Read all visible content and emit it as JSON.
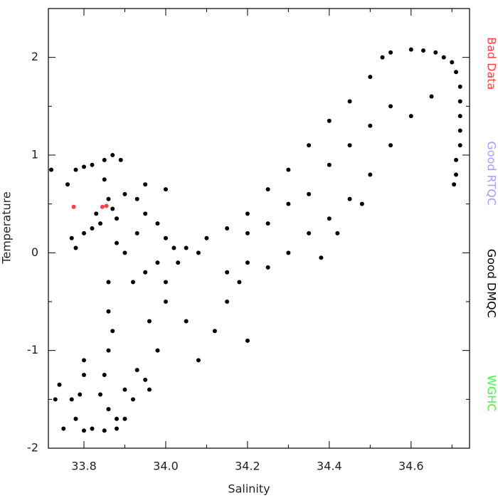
{
  "chart_data": {
    "type": "scatter",
    "xlabel": "Salinity",
    "ylabel": "Temperature",
    "xlim": [
      33.713,
      34.743
    ],
    "ylim": [
      -2,
      2.5
    ],
    "xticks": [
      33.8,
      {
        "value": 34,
        "label": "34.0"
      },
      34.2,
      34.4,
      34.6
    ],
    "xminorticks": [
      33.9,
      34.1,
      34.3,
      34.5,
      34.7
    ],
    "yticks": [
      -2,
      -1,
      0,
      1,
      2
    ],
    "yminorticks": [
      -1.5,
      -0.5,
      0.5,
      1.5
    ],
    "legend": "right",
    "series": [
      {
        "name": "Bad Data",
        "color": "#ff4040",
        "x": [
          33.775,
          33.845,
          33.855
        ],
        "y": [
          0.47,
          0.47,
          0.48
        ]
      },
      {
        "name": "Good RTQC",
        "color": "#a0a0ff",
        "x": [],
        "y": []
      },
      {
        "name": "Good DMQC",
        "color": "#000000",
        "x": [
          34.55,
          34.6,
          34.63,
          34.66,
          34.68,
          34.7,
          34.71,
          34.72,
          34.72,
          34.72,
          34.72,
          34.72,
          34.71,
          34.71,
          34.705,
          34.05,
          34.1,
          34.15,
          34.2,
          34.25,
          34.3,
          34.35,
          34.4,
          34.45,
          34.5,
          34.53,
          34.15,
          34.2,
          34.25,
          34.3,
          34.35,
          34.4,
          34.45,
          34.5,
          34.55,
          34.6,
          34.65,
          34.2,
          34.3,
          34.4,
          34.45,
          34.5,
          34.55,
          34.35,
          34.25,
          34.48,
          34.42,
          34.38,
          34.15,
          34.12,
          34.08,
          34.05,
          34.0,
          33.98,
          33.95,
          33.92,
          33.9,
          33.88,
          33.85,
          33.82,
          33.8,
          34.2,
          34.18,
          33.96,
          33.86,
          33.86,
          33.87,
          33.86,
          33.85,
          33.84,
          33.86,
          33.88,
          33.72,
          33.76,
          33.78,
          33.8,
          33.82,
          33.85,
          33.87,
          33.89,
          33.85,
          33.86,
          33.87,
          33.88,
          33.84,
          33.82,
          33.8,
          33.77,
          33.78,
          33.83,
          33.9,
          33.88,
          33.9,
          33.93,
          33.95,
          33.98,
          34.0,
          34.02,
          33.95,
          34.0,
          33.74,
          33.73,
          33.75,
          33.77,
          33.79,
          33.8,
          33.8,
          33.78,
          33.9,
          33.93,
          33.96,
          33.95,
          33.92,
          33.98,
          34.0,
          33.93,
          34.03,
          34.08
        ],
        "y": [
          2.05,
          2.08,
          2.07,
          2.05,
          2.0,
          1.95,
          1.85,
          1.7,
          1.55,
          1.4,
          1.25,
          1.1,
          0.95,
          0.8,
          0.7,
          0.05,
          0.15,
          0.25,
          0.4,
          0.65,
          0.85,
          1.1,
          1.35,
          1.55,
          1.8,
          2.0,
          -0.2,
          -0.1,
          -0.15,
          0.0,
          0.2,
          0.35,
          0.55,
          0.8,
          1.1,
          1.4,
          1.6,
          0.2,
          0.5,
          0.9,
          1.1,
          1.3,
          1.5,
          0.6,
          0.3,
          0.5,
          0.2,
          -0.05,
          -0.5,
          -0.8,
          -1.1,
          -0.7,
          -0.5,
          -1.0,
          -1.3,
          -1.5,
          -1.7,
          -1.8,
          -1.82,
          -1.8,
          -1.82,
          -0.9,
          -0.3,
          -0.7,
          -0.3,
          -0.6,
          -0.8,
          -1.0,
          -1.25,
          -1.45,
          -1.6,
          -1.7,
          0.85,
          0.7,
          0.85,
          0.88,
          0.9,
          0.95,
          1.0,
          0.95,
          0.75,
          0.55,
          0.45,
          0.35,
          0.3,
          0.25,
          0.2,
          0.15,
          0.05,
          0.4,
          0.6,
          0.1,
          0.0,
          0.55,
          0.4,
          0.3,
          0.15,
          0.05,
          0.7,
          0.65,
          -1.35,
          -1.5,
          -1.8,
          -1.5,
          -1.45,
          -1.1,
          -1.25,
          -1.7,
          -1.4,
          -1.2,
          -1.4,
          -0.2,
          -0.3,
          -0.1,
          -0.3,
          0.2,
          -0.1,
          0.0
        ]
      },
      {
        "name": "WGHC",
        "color": "#40ff40",
        "x": [],
        "y": []
      }
    ]
  }
}
